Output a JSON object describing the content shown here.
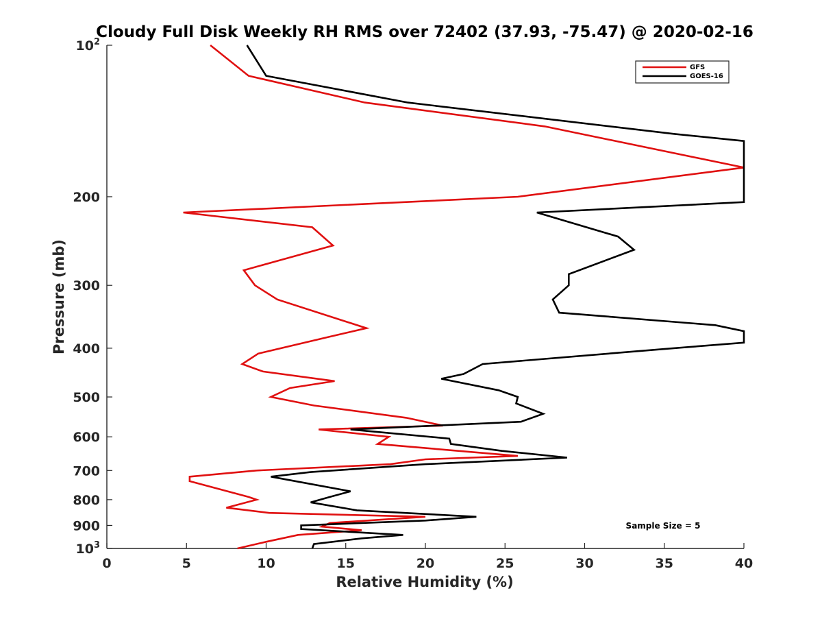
{
  "chart_data": {
    "type": "line",
    "title": "Cloudy Full Disk Weekly RH RMS over 72402 (37.93, -75.47) @ 2020-02-16",
    "xlabel": "Relative Humidity (%)",
    "ylabel": "Pressure (mb)",
    "xlim": [
      0,
      40
    ],
    "ylim": [
      100,
      1000
    ],
    "y_scale": "log",
    "y_reversed": true,
    "grid": false,
    "x_ticks": [
      0,
      5,
      10,
      15,
      20,
      25,
      30,
      35,
      40
    ],
    "x_tick_labels": [
      "0",
      "5",
      "10",
      "15",
      "20",
      "25",
      "30",
      "35",
      "40"
    ],
    "y_ticks": [
      100,
      200,
      300,
      400,
      500,
      600,
      700,
      800,
      900,
      1000
    ],
    "y_tick_labels": [
      {
        "base": "10",
        "sup": "2"
      },
      {
        "base": "200",
        "sup": ""
      },
      {
        "base": "300",
        "sup": ""
      },
      {
        "base": "400",
        "sup": ""
      },
      {
        "base": "500",
        "sup": ""
      },
      {
        "base": "600",
        "sup": ""
      },
      {
        "base": "700",
        "sup": ""
      },
      {
        "base": "800",
        "sup": ""
      },
      {
        "base": "900",
        "sup": ""
      },
      {
        "base": "10",
        "sup": "3"
      }
    ],
    "legend_position": "top-right",
    "annotation": "Sample Size = 5",
    "series": [
      {
        "name": "GFS",
        "color": "#e01010",
        "points": [
          [
            6.5,
            100
          ],
          [
            8.9,
            115
          ],
          [
            16.2,
            130
          ],
          [
            27.5,
            145
          ],
          [
            40.0,
            175
          ],
          [
            25.8,
            200
          ],
          [
            4.8,
            215
          ],
          [
            12.9,
            230
          ],
          [
            14.2,
            250
          ],
          [
            8.6,
            280
          ],
          [
            9.3,
            300
          ],
          [
            10.7,
            320
          ],
          [
            16.3,
            365
          ],
          [
            13.9,
            380
          ],
          [
            9.5,
            410
          ],
          [
            8.5,
            430
          ],
          [
            9.8,
            445
          ],
          [
            14.3,
            465
          ],
          [
            11.5,
            480
          ],
          [
            10.3,
            500
          ],
          [
            13.0,
            520
          ],
          [
            18.8,
            550
          ],
          [
            21.1,
            570
          ],
          [
            13.3,
            580
          ],
          [
            17.7,
            600
          ],
          [
            17.0,
            620
          ],
          [
            25.8,
            655
          ],
          [
            20.0,
            665
          ],
          [
            17.8,
            680
          ],
          [
            9.4,
            700
          ],
          [
            5.2,
            720
          ],
          [
            5.2,
            735
          ],
          [
            8.9,
            790
          ],
          [
            9.4,
            800
          ],
          [
            7.5,
            830
          ],
          [
            10.2,
            850
          ],
          [
            20.0,
            865
          ],
          [
            14.0,
            890
          ],
          [
            13.5,
            905
          ],
          [
            16.0,
            920
          ],
          [
            12.0,
            940
          ],
          [
            10.0,
            970
          ],
          [
            8.2,
            1000
          ]
        ]
      },
      {
        "name": "GOES-16",
        "color": "#000000",
        "points": [
          [
            8.8,
            100
          ],
          [
            10.0,
            115
          ],
          [
            18.9,
            130
          ],
          [
            35.6,
            150
          ],
          [
            40.0,
            155
          ],
          [
            40.0,
            205
          ],
          [
            27.0,
            215
          ],
          [
            32.1,
            240
          ],
          [
            33.1,
            255
          ],
          [
            29.0,
            285
          ],
          [
            29.0,
            300
          ],
          [
            28.0,
            320
          ],
          [
            28.4,
            340
          ],
          [
            38.2,
            360
          ],
          [
            40.0,
            370
          ],
          [
            40.0,
            390
          ],
          [
            35.6,
            400
          ],
          [
            23.6,
            430
          ],
          [
            22.4,
            450
          ],
          [
            21.0,
            460
          ],
          [
            24.6,
            485
          ],
          [
            25.8,
            500
          ],
          [
            25.7,
            515
          ],
          [
            27.4,
            540
          ],
          [
            26.0,
            560
          ],
          [
            15.3,
            580
          ],
          [
            21.5,
            605
          ],
          [
            21.6,
            620
          ],
          [
            24.8,
            640
          ],
          [
            28.9,
            660
          ],
          [
            20.0,
            680
          ],
          [
            12.8,
            705
          ],
          [
            10.3,
            720
          ],
          [
            15.3,
            770
          ],
          [
            14.0,
            790
          ],
          [
            12.8,
            810
          ],
          [
            15.7,
            840
          ],
          [
            23.2,
            865
          ],
          [
            20.0,
            880
          ],
          [
            12.2,
            900
          ],
          [
            12.2,
            915
          ],
          [
            18.6,
            940
          ],
          [
            16.0,
            955
          ],
          [
            13.0,
            980
          ],
          [
            12.9,
            1000
          ]
        ]
      }
    ]
  }
}
